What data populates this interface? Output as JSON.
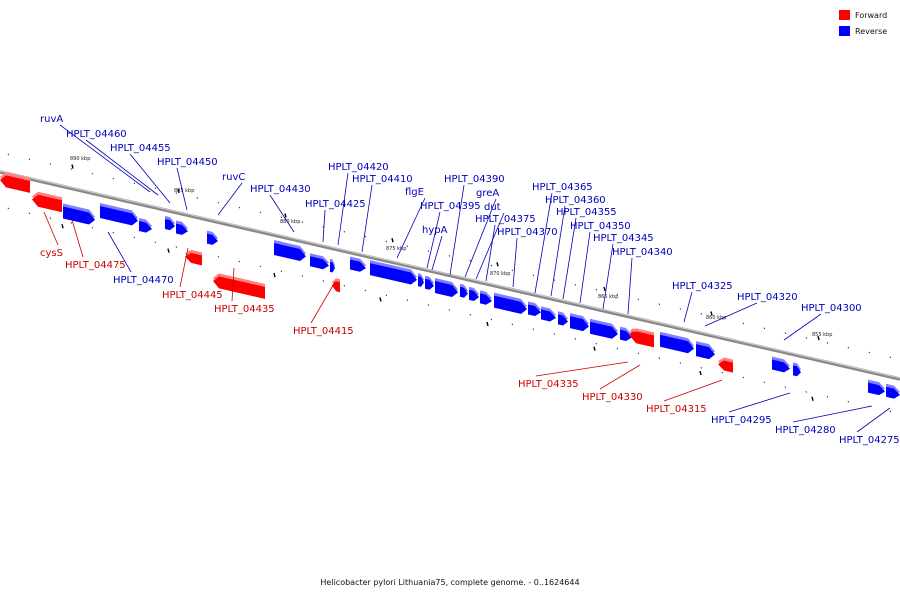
{
  "legend": {
    "forward": {
      "label": "Forward",
      "color": "#ff0000"
    },
    "reverse": {
      "label": "Reverse",
      "color": "#0000ff"
    }
  },
  "caption": "Helicobacter pylori Lithuania75, complete genome. - 0..1624644",
  "scale_labels": [
    "890 kbp",
    "885 kbp",
    "880 kbp",
    "875 kbp",
    "870 kbp",
    "865 kbp",
    "860 kbp",
    "855 kbp"
  ],
  "genes": [
    {
      "id": "cysS",
      "strand": "forward"
    },
    {
      "id": "HPLT_04475",
      "strand": "forward"
    },
    {
      "id": "HPLT_04470",
      "strand": "reverse"
    },
    {
      "id": "ruvA",
      "strand": "reverse"
    },
    {
      "id": "HPLT_04460",
      "strand": "reverse"
    },
    {
      "id": "HPLT_04455",
      "strand": "reverse"
    },
    {
      "id": "HPLT_04450",
      "strand": "reverse"
    },
    {
      "id": "HPLT_04445",
      "strand": "forward"
    },
    {
      "id": "ruvC",
      "strand": "reverse"
    },
    {
      "id": "HPLT_04435",
      "strand": "forward"
    },
    {
      "id": "HPLT_04430",
      "strand": "reverse"
    },
    {
      "id": "HPLT_04425",
      "strand": "reverse"
    },
    {
      "id": "HPLT_04420",
      "strand": "reverse"
    },
    {
      "id": "HPLT_04415",
      "strand": "forward"
    },
    {
      "id": "HPLT_04410",
      "strand": "reverse"
    },
    {
      "id": "flgE",
      "strand": "reverse"
    },
    {
      "id": "HPLT_04395",
      "strand": "reverse"
    },
    {
      "id": "hypA",
      "strand": "reverse"
    },
    {
      "id": "HPLT_04390",
      "strand": "reverse"
    },
    {
      "id": "greA",
      "strand": "reverse"
    },
    {
      "id": "dut",
      "strand": "reverse"
    },
    {
      "id": "HPLT_04375",
      "strand": "reverse"
    },
    {
      "id": "HPLT_04370",
      "strand": "reverse"
    },
    {
      "id": "HPLT_04365",
      "strand": "reverse"
    },
    {
      "id": "HPLT_04360",
      "strand": "reverse"
    },
    {
      "id": "HPLT_04355",
      "strand": "reverse"
    },
    {
      "id": "HPLT_04350",
      "strand": "reverse"
    },
    {
      "id": "HPLT_04345",
      "strand": "reverse"
    },
    {
      "id": "HPLT_04340",
      "strand": "reverse"
    },
    {
      "id": "HPLT_04335",
      "strand": "forward"
    },
    {
      "id": "HPLT_04330",
      "strand": "forward"
    },
    {
      "id": "HPLT_04325",
      "strand": "reverse"
    },
    {
      "id": "HPLT_04320",
      "strand": "reverse"
    },
    {
      "id": "HPLT_04315",
      "strand": "forward"
    },
    {
      "id": "HPLT_04300",
      "strand": "reverse"
    },
    {
      "id": "HPLT_04295",
      "strand": "reverse"
    },
    {
      "id": "HPLT_04280",
      "strand": "reverse"
    },
    {
      "id": "HPLT_04275",
      "strand": "reverse"
    }
  ]
}
